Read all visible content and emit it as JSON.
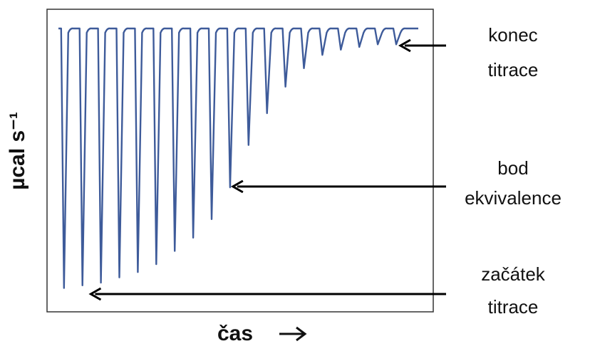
{
  "chart_data": {
    "type": "line",
    "xlabel": "čas",
    "ylabel": "µcal s⁻¹",
    "xlim": [
      0,
      20
    ],
    "ylim": [
      -1,
      0
    ],
    "grid": false,
    "series": [
      {
        "color": "#3e5b9a",
        "peaks": [
          {
            "x": 0.3,
            "y": -0.98
          },
          {
            "x": 1.3,
            "y": -0.97
          },
          {
            "x": 2.3,
            "y": -0.96
          },
          {
            "x": 3.3,
            "y": -0.94
          },
          {
            "x": 4.3,
            "y": -0.92
          },
          {
            "x": 5.3,
            "y": -0.89
          },
          {
            "x": 6.3,
            "y": -0.84
          },
          {
            "x": 7.3,
            "y": -0.79
          },
          {
            "x": 8.3,
            "y": -0.72
          },
          {
            "x": 9.3,
            "y": -0.6
          },
          {
            "x": 10.3,
            "y": -0.44
          },
          {
            "x": 11.3,
            "y": -0.32
          },
          {
            "x": 12.3,
            "y": -0.22
          },
          {
            "x": 13.3,
            "y": -0.15
          },
          {
            "x": 14.3,
            "y": -0.1
          },
          {
            "x": 15.3,
            "y": -0.08
          },
          {
            "x": 16.3,
            "y": -0.07
          },
          {
            "x": 17.3,
            "y": -0.06
          },
          {
            "x": 18.3,
            "y": -0.06
          }
        ]
      }
    ],
    "annotations": [
      {
        "lines": [
          "konec",
          "titrace"
        ],
        "target": {
          "x": 18.3,
          "y": -0.06
        }
      },
      {
        "lines": [
          "bod",
          "ekvivalence"
        ],
        "target": {
          "x": 9.3,
          "y": -0.6
        }
      },
      {
        "lines": [
          "začátek",
          "titrace"
        ],
        "target": {
          "x": 1.6,
          "y": -0.99
        }
      }
    ]
  }
}
